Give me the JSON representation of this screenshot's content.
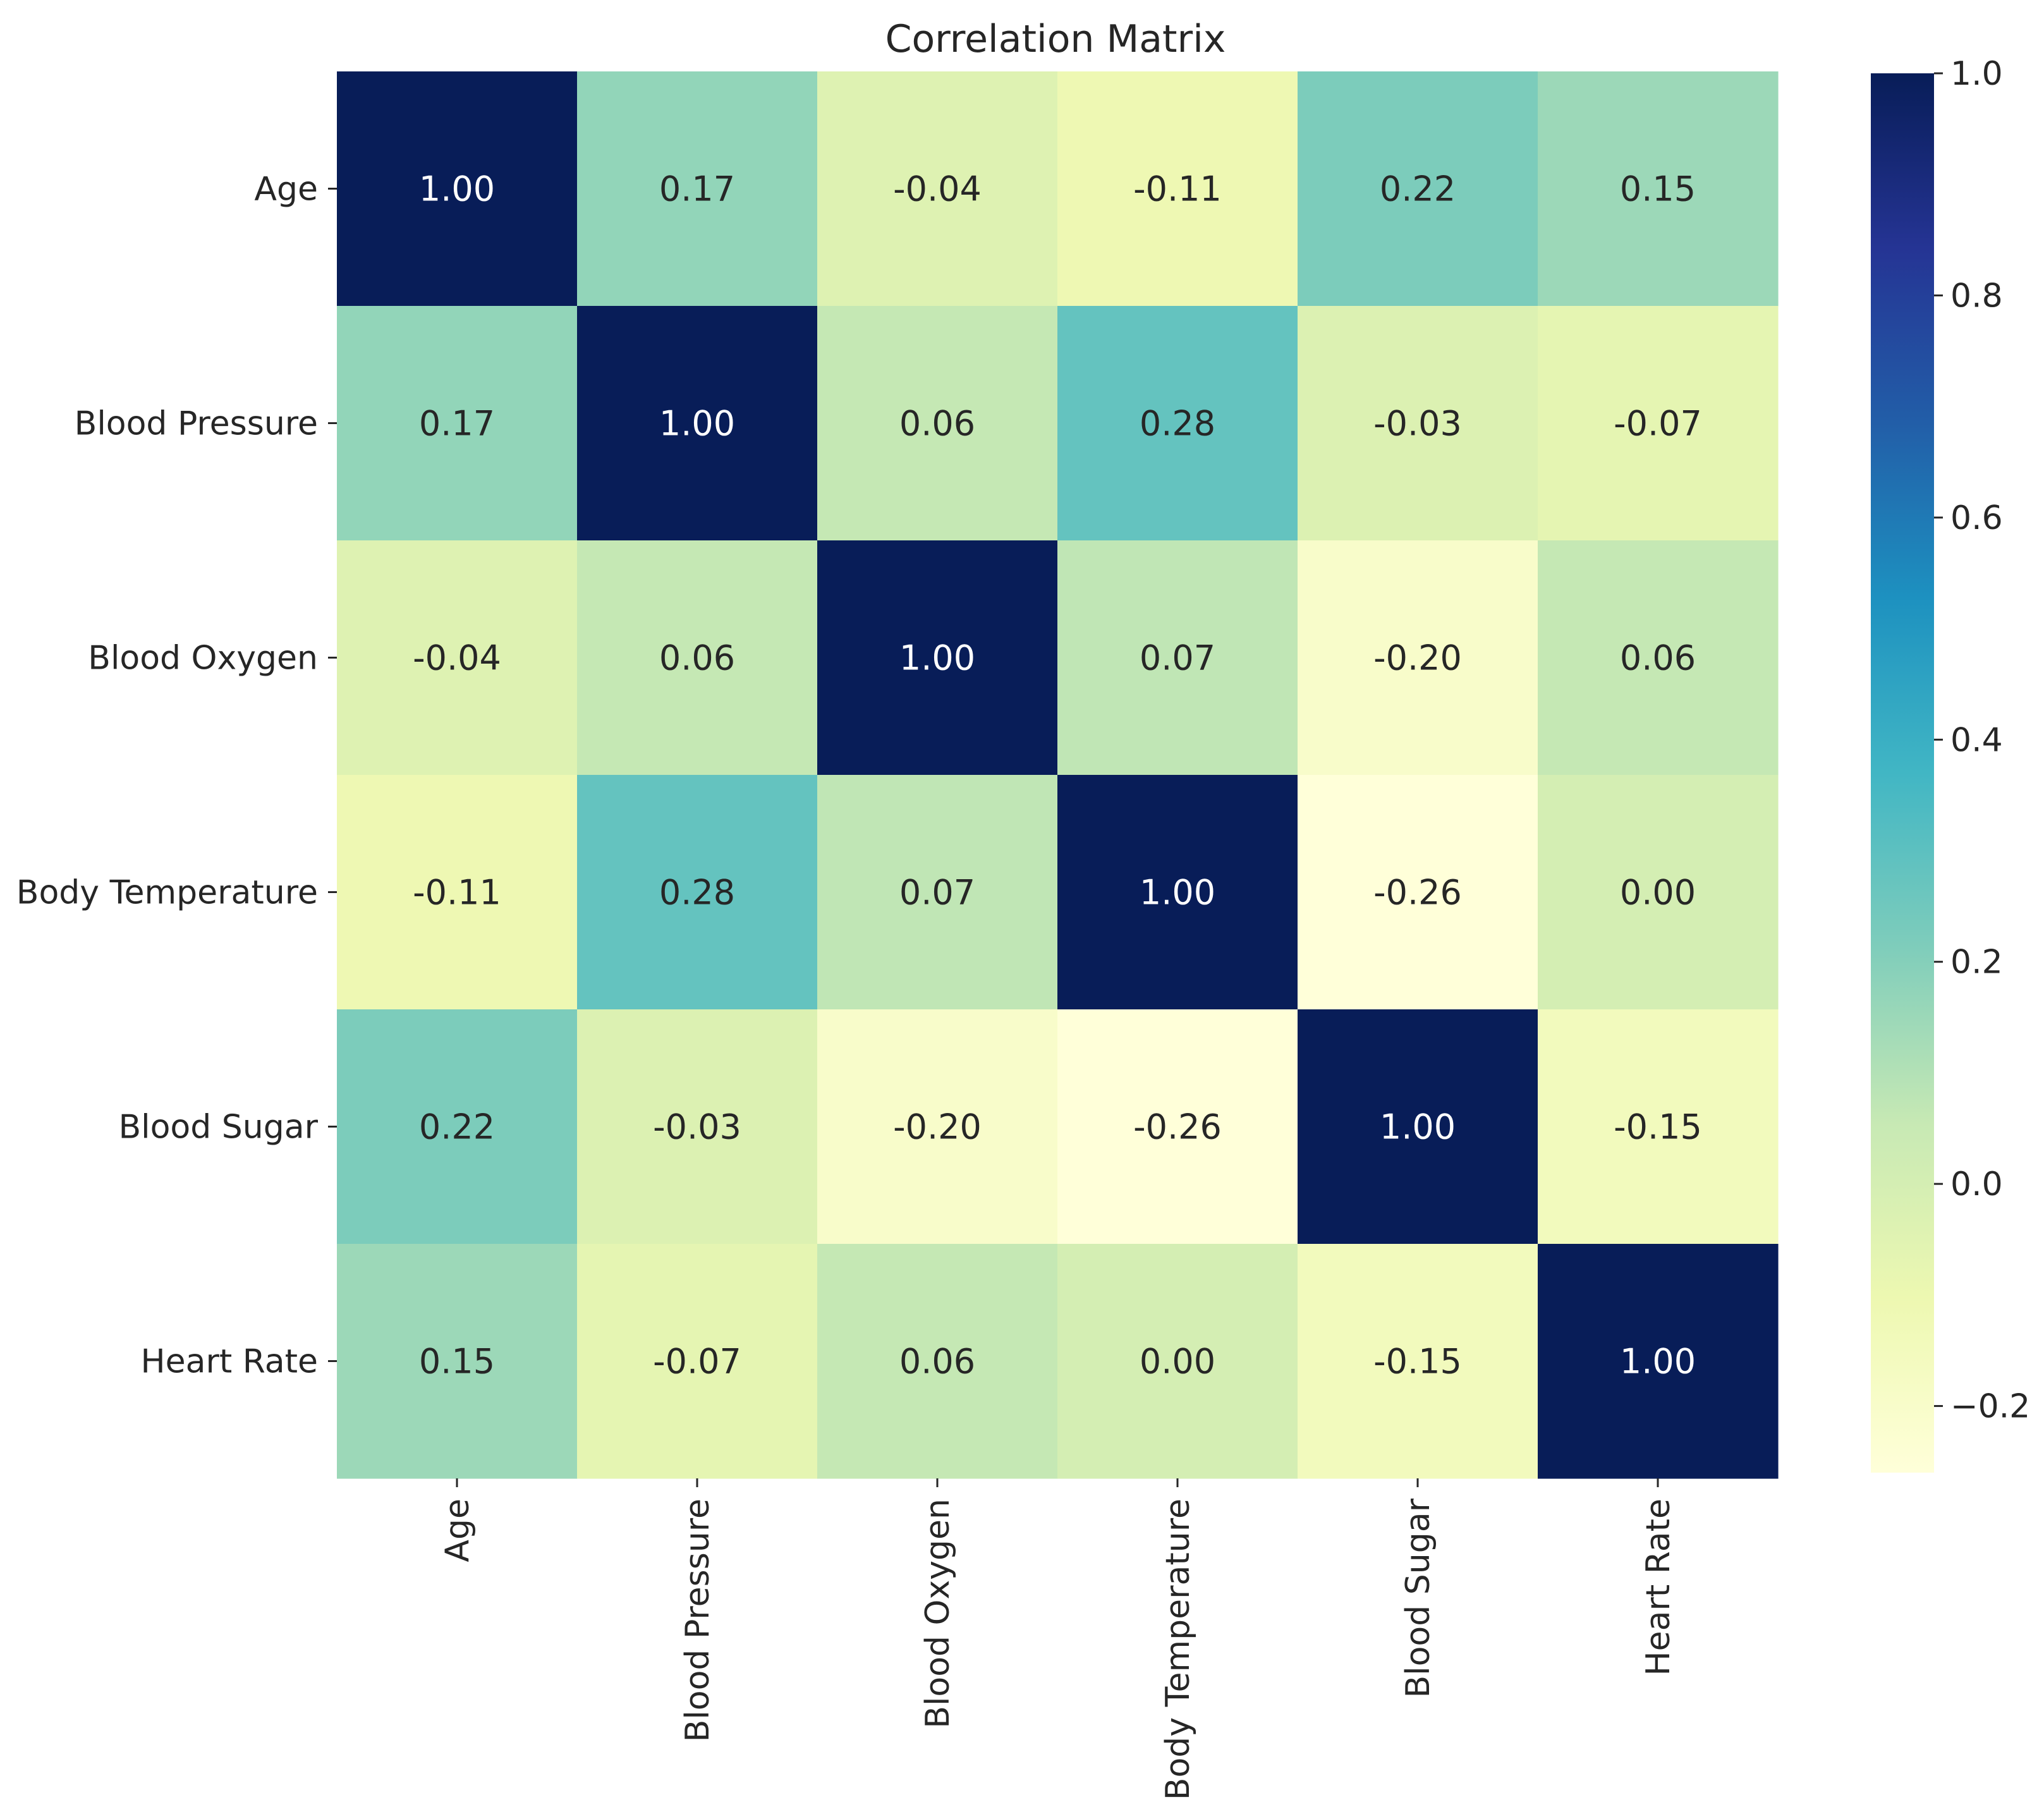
{
  "chart_data": {
    "type": "heatmap",
    "title": "Correlation Matrix",
    "xlabel": "",
    "ylabel": "",
    "row_labels": [
      "Age",
      "Blood Pressure",
      "Blood Oxygen",
      "Body Temperature",
      "Blood Sugar",
      "Heart Rate"
    ],
    "col_labels": [
      "Age",
      "Blood Pressure",
      "Blood Oxygen",
      "Body Temperature",
      "Blood Sugar",
      "Heart Rate"
    ],
    "values": [
      [
        1.0,
        0.17,
        -0.04,
        -0.11,
        0.22,
        0.15
      ],
      [
        0.17,
        1.0,
        0.06,
        0.28,
        -0.03,
        -0.07
      ],
      [
        -0.04,
        0.06,
        1.0,
        0.07,
        -0.2,
        0.06
      ],
      [
        -0.11,
        0.28,
        0.07,
        1.0,
        -0.26,
        0.0
      ],
      [
        0.22,
        -0.03,
        -0.2,
        -0.26,
        1.0,
        -0.15
      ],
      [
        0.15,
        -0.07,
        0.06,
        0.0,
        -0.15,
        1.0
      ]
    ],
    "annotations": [
      [
        "1.00",
        "0.17",
        "-0.04",
        "-0.11",
        "0.22",
        "0.15"
      ],
      [
        "0.17",
        "1.00",
        "0.06",
        "0.28",
        "-0.03",
        "-0.07"
      ],
      [
        "-0.04",
        "0.06",
        "1.00",
        "0.07",
        "-0.20",
        "0.06"
      ],
      [
        "-0.11",
        "0.28",
        "0.07",
        "1.00",
        "-0.26",
        "0.00"
      ],
      [
        "0.22",
        "-0.03",
        "-0.20",
        "-0.26",
        "1.00",
        "-0.15"
      ],
      [
        "0.15",
        "-0.07",
        "0.06",
        "0.00",
        "-0.15",
        "1.00"
      ]
    ],
    "colorbar": {
      "vmin": -0.26,
      "vmax": 1.0,
      "ticks": [
        -0.2,
        0.0,
        0.2,
        0.4,
        0.6,
        0.8,
        1.0
      ],
      "tick_labels": [
        "−0.2",
        "0.0",
        "0.2",
        "0.4",
        "0.6",
        "0.8",
        "1.0"
      ]
    },
    "colormap": {
      "name": "YlGnBu",
      "stops": [
        "#ffffd9",
        "#edf8b1",
        "#c7e9b4",
        "#7fcdbb",
        "#41b6c4",
        "#1d91c0",
        "#225ea8",
        "#253494",
        "#081d58"
      ]
    },
    "colors": {
      "text_dark": "#262626",
      "text_light": "#ffffff",
      "background": "#ffffff"
    }
  }
}
